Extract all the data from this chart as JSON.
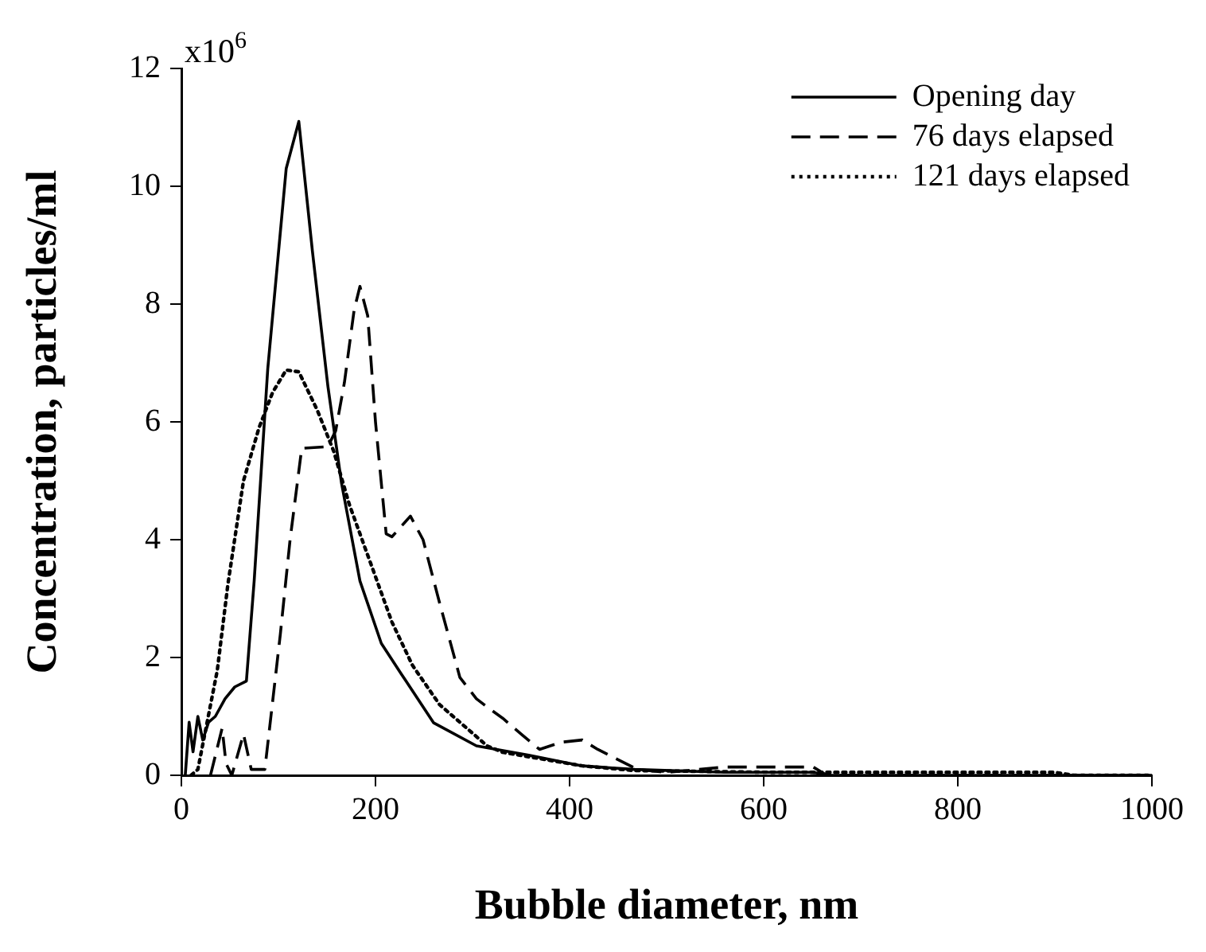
{
  "chart_data": {
    "type": "line",
    "xlabel": "Bubble diameter, nm",
    "ylabel": "Concentration, particles/ml",
    "annotations": [
      "x10$^{6}$"
    ],
    "xlim": [
      0,
      1000
    ],
    "xticks": [
      0,
      200,
      400,
      600,
      800,
      1000
    ],
    "ylim": [
      0,
      12
    ],
    "yticks": [
      0,
      2,
      4,
      6,
      8,
      10,
      12
    ],
    "grid": false,
    "legend": "top right",
    "marker": "none",
    "series": [
      {
        "name": "Opening day",
        "color": "#000000",
        "line_style": "solid",
        "x": [
          4,
          8,
          12,
          17,
          22,
          28,
          35,
          45,
          55,
          67,
          75,
          89,
          108,
          121,
          135,
          151,
          165,
          184,
          206,
          227,
          260,
          304,
          358,
          413,
          467,
          560,
          650,
          670,
          1000
        ],
        "values": [
          0,
          0.9,
          0.4,
          1.0,
          0.6,
          0.9,
          1.0,
          1.3,
          1.5,
          1.6,
          3.3,
          6.9,
          10.3,
          11.1,
          8.9,
          6.6,
          4.96,
          3.3,
          2.24,
          1.71,
          0.89,
          0.5,
          0.34,
          0.16,
          0.1,
          0.05,
          0.05,
          0,
          0
        ]
      },
      {
        "name": "76 days elapsed",
        "color": "#000000",
        "line_style": "dashed",
        "x": [
          30,
          42,
          46,
          52,
          64,
          72,
          86,
          102,
          112,
          124,
          151,
          159,
          168,
          178,
          184,
          192,
          200,
          211,
          217,
          236,
          249,
          266,
          287,
          304,
          315,
          331,
          350,
          369,
          391,
          413,
          429,
          470,
          500,
          560,
          651,
          665,
          1000
        ],
        "values": [
          0,
          0.8,
          0.2,
          0,
          0.7,
          0.1,
          0.1,
          2.4,
          4.0,
          5.55,
          5.58,
          5.85,
          6.67,
          7.9,
          8.3,
          7.8,
          6.0,
          4.1,
          4.05,
          4.4,
          4.0,
          2.93,
          1.66,
          1.3,
          1.16,
          0.97,
          0.7,
          0.44,
          0.56,
          0.6,
          0.44,
          0.1,
          0.05,
          0.14,
          0.14,
          0,
          0
        ]
      },
      {
        "name": "121 days elapsed",
        "color": "#000000",
        "line_style": "dotted",
        "x": [
          10,
          17,
          37,
          48,
          64,
          80,
          94,
          108,
          121,
          140,
          157,
          173,
          195,
          217,
          238,
          266,
          315,
          331,
          413,
          467,
          614,
          658,
          900,
          920,
          1000
        ],
        "values": [
          0,
          0.1,
          1.78,
          3.25,
          5.0,
          5.9,
          6.5,
          6.88,
          6.85,
          6.2,
          5.5,
          4.6,
          3.6,
          2.6,
          1.87,
          1.2,
          0.5,
          0.39,
          0.16,
          0.08,
          0.05,
          0.05,
          0.05,
          0,
          0
        ]
      }
    ]
  }
}
